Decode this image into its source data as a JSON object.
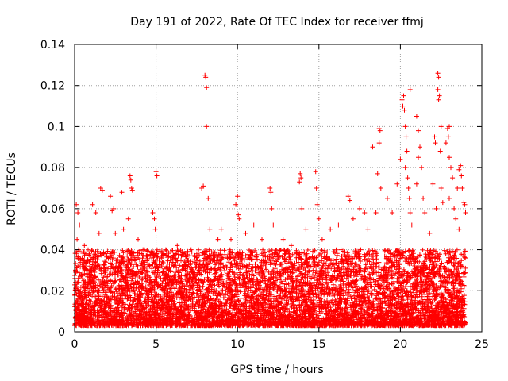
{
  "chart_data": {
    "type": "scatter",
    "title": "Day 191 of 2022, Rate Of TEC Index for receiver ffmj",
    "xlabel": "GPS time / hours",
    "ylabel": "ROTI / TECUs",
    "xlim": [
      0,
      25
    ],
    "ylim": [
      0,
      0.14
    ],
    "xticks": [
      0,
      5,
      10,
      15,
      20,
      25
    ],
    "yticks": [
      0,
      0.02,
      0.04,
      0.06,
      0.08,
      0.1,
      0.12,
      0.14
    ],
    "xtick_labels": [
      "0",
      "5",
      "10",
      "15",
      "20",
      "25"
    ],
    "ytick_labels": [
      "0",
      "0.02",
      "0.04",
      "0.06",
      "0.08",
      "0.1",
      "0.12",
      "0.14"
    ],
    "grid": true,
    "marker": "+",
    "color": "#ff0000",
    "series": [
      {
        "name": "ffmj",
        "points": [
          [
            0.1,
            0.062
          ],
          [
            0.2,
            0.058
          ],
          [
            0.3,
            0.052
          ],
          [
            0.15,
            0.045
          ],
          [
            0.25,
            0.04
          ],
          [
            0.05,
            0.03
          ],
          [
            0.6,
            0.042
          ],
          [
            0.9,
            0.038
          ],
          [
            1.1,
            0.062
          ],
          [
            1.3,
            0.058
          ],
          [
            1.5,
            0.048
          ],
          [
            1.6,
            0.07
          ],
          [
            1.7,
            0.069
          ],
          [
            2.2,
            0.066
          ],
          [
            2.3,
            0.059
          ],
          [
            2.4,
            0.06
          ],
          [
            2.5,
            0.048
          ],
          [
            2.9,
            0.068
          ],
          [
            3.0,
            0.05
          ],
          [
            3.4,
            0.076
          ],
          [
            3.45,
            0.074
          ],
          [
            3.5,
            0.07
          ],
          [
            3.55,
            0.069
          ],
          [
            3.3,
            0.055
          ],
          [
            3.9,
            0.045
          ],
          [
            4.2,
            0.04
          ],
          [
            4.8,
            0.058
          ],
          [
            4.9,
            0.055
          ],
          [
            5.0,
            0.078
          ],
          [
            5.05,
            0.076
          ],
          [
            4.95,
            0.05
          ],
          [
            5.6,
            0.04
          ],
          [
            6.3,
            0.042
          ],
          [
            7.5,
            0.038
          ],
          [
            7.8,
            0.07
          ],
          [
            7.9,
            0.071
          ],
          [
            8.0,
            0.125
          ],
          [
            8.05,
            0.124
          ],
          [
            8.1,
            0.119
          ],
          [
            8.1,
            0.1
          ],
          [
            8.2,
            0.065
          ],
          [
            8.3,
            0.05
          ],
          [
            8.8,
            0.045
          ],
          [
            9.0,
            0.05
          ],
          [
            9.6,
            0.045
          ],
          [
            9.9,
            0.062
          ],
          [
            10.0,
            0.066
          ],
          [
            10.05,
            0.057
          ],
          [
            10.1,
            0.055
          ],
          [
            10.5,
            0.048
          ],
          [
            11.0,
            0.052
          ],
          [
            11.5,
            0.045
          ],
          [
            12.0,
            0.07
          ],
          [
            12.05,
            0.068
          ],
          [
            12.1,
            0.06
          ],
          [
            12.2,
            0.052
          ],
          [
            12.8,
            0.045
          ],
          [
            13.3,
            0.042
          ],
          [
            13.8,
            0.073
          ],
          [
            13.85,
            0.077
          ],
          [
            13.9,
            0.075
          ],
          [
            13.95,
            0.06
          ],
          [
            14.2,
            0.05
          ],
          [
            14.8,
            0.078
          ],
          [
            14.85,
            0.07
          ],
          [
            14.9,
            0.062
          ],
          [
            15.0,
            0.055
          ],
          [
            15.2,
            0.045
          ],
          [
            15.7,
            0.05
          ],
          [
            16.2,
            0.052
          ],
          [
            16.8,
            0.066
          ],
          [
            16.9,
            0.064
          ],
          [
            17.1,
            0.055
          ],
          [
            17.5,
            0.06
          ],
          [
            17.8,
            0.058
          ],
          [
            18.0,
            0.05
          ],
          [
            18.3,
            0.09
          ],
          [
            18.5,
            0.058
          ],
          [
            18.7,
            0.099
          ],
          [
            18.75,
            0.098
          ],
          [
            18.7,
            0.092
          ],
          [
            18.6,
            0.077
          ],
          [
            18.8,
            0.07
          ],
          [
            19.2,
            0.065
          ],
          [
            19.5,
            0.058
          ],
          [
            19.8,
            0.072
          ],
          [
            20.0,
            0.084
          ],
          [
            20.1,
            0.113
          ],
          [
            20.15,
            0.11
          ],
          [
            20.2,
            0.115
          ],
          [
            20.25,
            0.108
          ],
          [
            20.3,
            0.1
          ],
          [
            20.35,
            0.095
          ],
          [
            20.4,
            0.088
          ],
          [
            20.3,
            0.08
          ],
          [
            20.45,
            0.075
          ],
          [
            20.5,
            0.07
          ],
          [
            20.55,
            0.065
          ],
          [
            20.6,
            0.058
          ],
          [
            20.7,
            0.052
          ],
          [
            20.6,
            0.118
          ],
          [
            21.0,
            0.105
          ],
          [
            21.1,
            0.098
          ],
          [
            21.2,
            0.09
          ],
          [
            21.1,
            0.085
          ],
          [
            21.3,
            0.08
          ],
          [
            21.0,
            0.072
          ],
          [
            21.4,
            0.065
          ],
          [
            21.5,
            0.058
          ],
          [
            21.8,
            0.048
          ],
          [
            22.0,
            0.072
          ],
          [
            22.1,
            0.095
          ],
          [
            22.15,
            0.092
          ],
          [
            22.3,
            0.126
          ],
          [
            22.35,
            0.124
          ],
          [
            22.3,
            0.118
          ],
          [
            22.4,
            0.115
          ],
          [
            22.35,
            0.113
          ],
          [
            22.5,
            0.1
          ],
          [
            22.45,
            0.088
          ],
          [
            22.5,
            0.07
          ],
          [
            22.6,
            0.063
          ],
          [
            22.2,
            0.06
          ],
          [
            22.8,
            0.092
          ],
          [
            22.9,
            0.099
          ],
          [
            23.0,
            0.1
          ],
          [
            22.95,
            0.095
          ],
          [
            23.0,
            0.085
          ],
          [
            23.1,
            0.08
          ],
          [
            23.2,
            0.075
          ],
          [
            23.0,
            0.065
          ],
          [
            23.3,
            0.06
          ],
          [
            23.5,
            0.07
          ],
          [
            23.6,
            0.079
          ],
          [
            23.7,
            0.081
          ],
          [
            23.75,
            0.076
          ],
          [
            23.8,
            0.07
          ],
          [
            23.9,
            0.063
          ],
          [
            23.95,
            0.062
          ],
          [
            24.0,
            0.058
          ],
          [
            23.4,
            0.055
          ],
          [
            23.6,
            0.05
          ]
        ],
        "dense_band": {
          "x_range": [
            0,
            24
          ],
          "typical_min": 0.003,
          "typical_max": 0.04,
          "description": "thousands of overlapping + markers between 0.003 and about 0.04 TECU across the whole day"
        }
      }
    ]
  }
}
